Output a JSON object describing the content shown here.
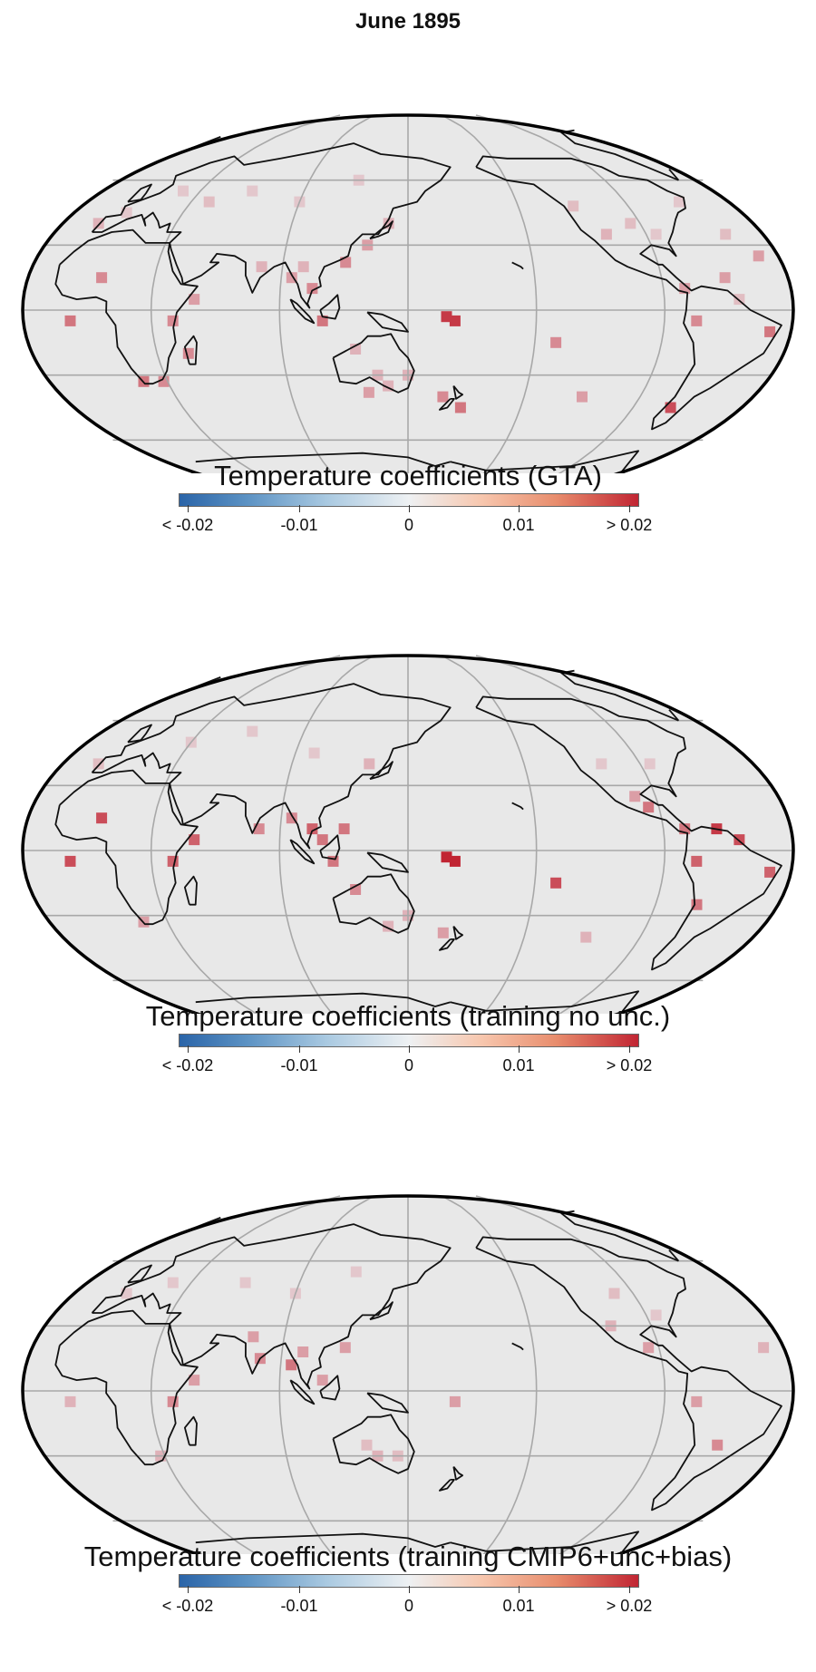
{
  "title": "June 1895",
  "colorbar": {
    "tick_labels": [
      "< -0.02",
      "-0.01",
      "0",
      "0.01",
      "> 0.02"
    ],
    "range": [
      -0.02,
      0.02
    ],
    "colors": {
      "low": "#2a64a8",
      "mid": "#eef1f3",
      "high": "#c12533"
    }
  },
  "panels": [
    {
      "caption": "Temperature coefficients (GTA)",
      "cells": [
        [
          172,
          -5,
          0.018
        ],
        [
          168,
          -3,
          0.018
        ],
        [
          -140,
          -15,
          0.01
        ],
        [
          -120,
          -40,
          0.008
        ],
        [
          -75,
          -5,
          0.01
        ],
        [
          -70,
          -45,
          0.016
        ],
        [
          5,
          15,
          0.01
        ],
        [
          40,
          -5,
          0.01
        ],
        [
          50,
          5,
          0.008
        ],
        [
          45,
          -20,
          0.01
        ],
        [
          18,
          -33,
          0.012
        ],
        [
          28,
          -33,
          0.01
        ],
        [
          135,
          -30,
          0.006
        ],
        [
          140,
          -35,
          0.006
        ],
        [
          150,
          -30,
          0.006
        ],
        [
          125,
          -18,
          0.006
        ],
        [
          130,
          -38,
          0.008
        ],
        [
          168,
          -40,
          0.01
        ],
        [
          178,
          -45,
          0.012
        ],
        [
          -110,
          35,
          0.006
        ],
        [
          -95,
          40,
          0.005
        ],
        [
          -85,
          35,
          0.004
        ],
        [
          -120,
          48,
          0.005
        ],
        [
          -80,
          10,
          0.008
        ],
        [
          -60,
          15,
          0.008
        ],
        [
          -55,
          5,
          0.005
        ],
        [
          -40,
          -10,
          0.012
        ],
        [
          -8,
          -5,
          0.012
        ],
        [
          -40,
          25,
          0.008
        ],
        [
          -50,
          35,
          0.005
        ],
        [
          -60,
          50,
          0.004
        ],
        [
          -10,
          40,
          0.006
        ],
        [
          80,
          20,
          0.006
        ],
        [
          95,
          15,
          0.008
        ],
        [
          100,
          20,
          0.006
        ],
        [
          105,
          10,
          0.01
        ],
        [
          110,
          -5,
          0.012
        ],
        [
          120,
          22,
          0.01
        ],
        [
          130,
          30,
          0.008
        ],
        [
          140,
          40,
          0.006
        ],
        [
          60,
          55,
          0.004
        ],
        [
          90,
          50,
          0.004
        ],
        [
          120,
          60,
          0.004
        ],
        [
          20,
          55,
          0.004
        ],
        [
          40,
          50,
          0.005
        ],
        [
          0,
          45,
          0.004
        ]
      ]
    },
    {
      "caption": "Temperature coefficients (training no unc.)",
      "cells": [
        [
          172,
          -5,
          0.02
        ],
        [
          168,
          -3,
          0.02
        ],
        [
          -140,
          -15,
          0.016
        ],
        [
          -118,
          -40,
          0.006
        ],
        [
          -75,
          -5,
          0.014
        ],
        [
          -70,
          -25,
          0.012
        ],
        [
          5,
          15,
          0.016
        ],
        [
          40,
          -5,
          0.014
        ],
        [
          50,
          5,
          0.014
        ],
        [
          18,
          -33,
          0.008
        ],
        [
          -40,
          -10,
          0.014
        ],
        [
          -8,
          -5,
          0.016
        ],
        [
          -55,
          5,
          0.016
        ],
        [
          -80,
          10,
          0.012
        ],
        [
          -65,
          10,
          0.018
        ],
        [
          -95,
          20,
          0.012
        ],
        [
          -100,
          25,
          0.008
        ],
        [
          80,
          10,
          0.01
        ],
        [
          95,
          15,
          0.01
        ],
        [
          105,
          10,
          0.014
        ],
        [
          110,
          5,
          0.012
        ],
        [
          120,
          10,
          0.012
        ],
        [
          115,
          -5,
          0.012
        ],
        [
          125,
          -18,
          0.01
        ],
        [
          150,
          -30,
          0.006
        ],
        [
          140,
          -35,
          0.006
        ],
        [
          168,
          -38,
          0.008
        ],
        [
          -110,
          40,
          0.004
        ],
        [
          -85,
          40,
          0.004
        ],
        [
          60,
          55,
          0.004
        ],
        [
          100,
          45,
          0.004
        ],
        [
          130,
          40,
          0.006
        ],
        [
          30,
          50,
          0.004
        ],
        [
          -10,
          40,
          0.005
        ]
      ]
    },
    {
      "caption": "Temperature coefficients (training CMIP6+unc+bias)",
      "cells": [
        [
          172,
          -5,
          0.008
        ],
        [
          40,
          -5,
          0.01
        ],
        [
          50,
          5,
          0.008
        ],
        [
          -60,
          -25,
          0.01
        ],
        [
          -75,
          -5,
          0.008
        ],
        [
          -95,
          20,
          0.008
        ],
        [
          -110,
          30,
          0.006
        ],
        [
          80,
          15,
          0.01
        ],
        [
          95,
          12,
          0.012
        ],
        [
          100,
          18,
          0.008
        ],
        [
          75,
          25,
          0.008
        ],
        [
          110,
          5,
          0.008
        ],
        [
          120,
          20,
          0.008
        ],
        [
          130,
          -25,
          0.005
        ],
        [
          135,
          -30,
          0.006
        ],
        [
          145,
          -30,
          0.005
        ],
        [
          -8,
          -5,
          0.006
        ],
        [
          28,
          -30,
          0.006
        ],
        [
          -40,
          20,
          0.006
        ],
        [
          60,
          50,
          0.004
        ],
        [
          90,
          45,
          0.004
        ],
        [
          120,
          55,
          0.004
        ],
        [
          -100,
          45,
          0.005
        ],
        [
          -85,
          35,
          0.004
        ],
        [
          20,
          50,
          0.004
        ],
        [
          0,
          45,
          0.004
        ]
      ]
    }
  ]
}
